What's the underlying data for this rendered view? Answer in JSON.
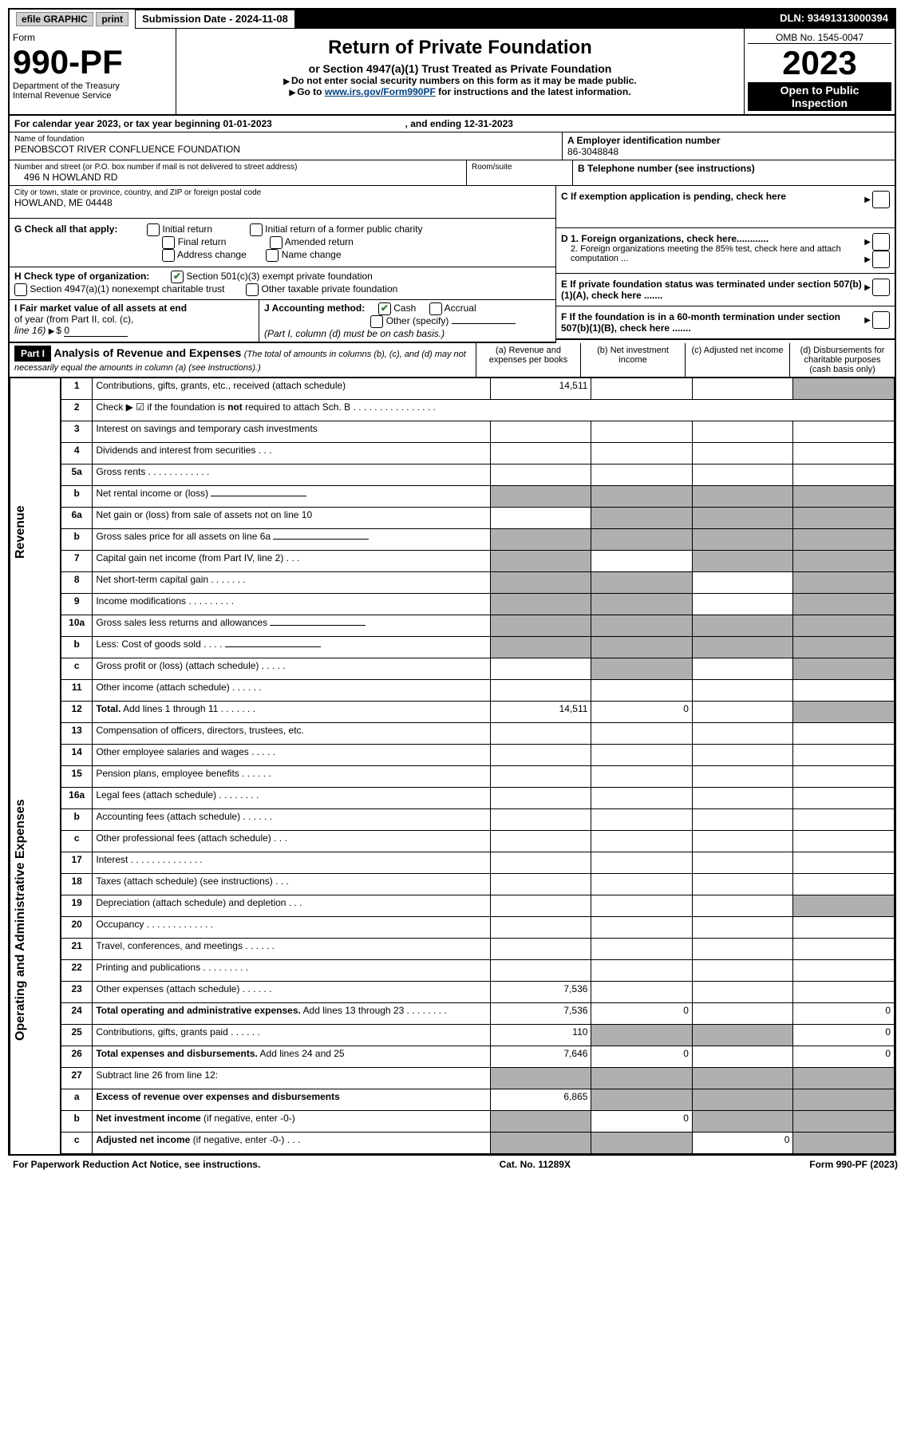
{
  "top_bar": {
    "efile": "efile GRAPHIC",
    "print": "print",
    "submission_label": "Submission Date - ",
    "submission_date": "2024-11-08",
    "dln_label": "DLN: ",
    "dln": "93491313000394"
  },
  "header": {
    "form_word": "Form",
    "form_number": "990-PF",
    "dept1": "Department of the Treasury",
    "dept2": "Internal Revenue Service",
    "title": "Return of Private Foundation",
    "subtitle": "or Section 4947(a)(1) Trust Treated as Private Foundation",
    "note1": "Do not enter social security numbers on this form as it may be made public.",
    "note2_pre": "Go to ",
    "note2_link": "www.irs.gov/Form990PF",
    "note2_post": " for instructions and the latest information.",
    "omb": "OMB No. 1545-0047",
    "year": "2023",
    "open_public1": "Open to Public",
    "open_public2": "Inspection"
  },
  "period": {
    "text": "For calendar year 2023, or tax year beginning ",
    "begin": "01-01-2023",
    "mid": " , and ending ",
    "end": "12-31-2023"
  },
  "identity": {
    "name_label": "Name of foundation",
    "name": "PENOBSCOT RIVER CONFLUENCE FOUNDATION",
    "addr_label": "Number and street (or P.O. box number if mail is not delivered to street address)",
    "addr": "496 N HOWLAND RD",
    "room_label": "Room/suite",
    "city_label": "City or town, state or province, country, and ZIP or foreign postal code",
    "city": "HOWLAND, ME  04448",
    "ein_label": "A Employer identification number",
    "ein": "86-3048848",
    "phone_label": "B Telephone number (see instructions)",
    "c_label": "C If exemption application is pending, check here",
    "d1": "D 1. Foreign organizations, check here............",
    "d2": "2. Foreign organizations meeting the 85% test, check here and attach computation ...",
    "e_label": "E  If private foundation status was terminated under section 507(b)(1)(A), check here .......",
    "f_label": "F  If the foundation is in a 60-month termination under section 507(b)(1)(B), check here .......",
    "g_label": "G Check all that apply:",
    "g_opts": [
      "Initial return",
      "Final return",
      "Address change",
      "Initial return of a former public charity",
      "Amended return",
      "Name change"
    ],
    "h_label": "H Check type of organization:",
    "h_501c3": "Section 501(c)(3) exempt private foundation",
    "h_4947": "Section 4947(a)(1) nonexempt charitable trust",
    "h_other": "Other taxable private foundation",
    "i_label1": "I Fair market value of all assets at end",
    "i_label2": "of year (from Part II, col. (c),",
    "i_label3": "line 16)",
    "i_val": "0",
    "j_label": "J Accounting method:",
    "j_cash": "Cash",
    "j_accrual": "Accrual",
    "j_other": "Other (specify)",
    "j_note": "(Part I, column (d) must be on cash basis.)"
  },
  "part1": {
    "label": "Part I",
    "title": "Analysis of Revenue and Expenses",
    "title_note": "(The total of amounts in columns (b), (c), and (d) may not necessarily equal the amounts in column (a) (see instructions).)",
    "cols": {
      "a": "(a)   Revenue and expenses per books",
      "b": "(b)   Net investment income",
      "c": "(c)   Adjusted net income",
      "d": "(d)   Disbursements for charitable purposes (cash basis only)"
    },
    "revenue_label": "Revenue",
    "expenses_label": "Operating and Administrative Expenses",
    "rows": [
      {
        "n": "1",
        "d": "Contributions, gifts, grants, etc., received (attach schedule)",
        "a": "14,511",
        "shade_d": true
      },
      {
        "n": "2",
        "d": "Check ▶ ☑ if the foundation is <b>not</b> required to attach Sch. B   .  .  .  .  .  .  .  .  .  .  .  .  .  .  .  .",
        "blank": true
      },
      {
        "n": "3",
        "d": "Interest on savings and temporary cash investments"
      },
      {
        "n": "4",
        "d": "Dividends and interest from securities   .   .   ."
      },
      {
        "n": "5a",
        "d": "Gross rents   .   .   .   .   .   .   .   .   .   .   .   ."
      },
      {
        "n": "b",
        "d": "Net rental income or (loss)",
        "inline": true,
        "shade_all": true
      },
      {
        "n": "6a",
        "d": "Net gain or (loss) from sale of assets not on line 10",
        "shade_bcd": true
      },
      {
        "n": "b",
        "d": "Gross sales price for all assets on line 6a",
        "inline": true,
        "shade_all": true
      },
      {
        "n": "7",
        "d": "Capital gain net income (from Part IV, line 2)   .   .   .",
        "shade_a": true,
        "shade_cd": true
      },
      {
        "n": "8",
        "d": "Net short-term capital gain   .   .   .   .   .   .   .",
        "shade_ab": true,
        "shade_d": true
      },
      {
        "n": "9",
        "d": "Income modifications   .   .   .   .   .   .   .   .   .",
        "shade_ab": true,
        "shade_d": true
      },
      {
        "n": "10a",
        "d": "Gross sales less returns and allowances",
        "inline": true,
        "shade_all": true
      },
      {
        "n": "b",
        "d": "Less: Cost of goods sold   .   .   .   .",
        "inline": true,
        "shade_all": true
      },
      {
        "n": "c",
        "d": "Gross profit or (loss) (attach schedule)   .   .   .   .   .",
        "shade_b": true,
        "shade_d": true
      },
      {
        "n": "11",
        "d": "Other income (attach schedule)   .   .   .   .   .   ."
      },
      {
        "n": "12",
        "d": "<b>Total.</b> Add lines 1 through 11   .   .   .   .   .   .   .",
        "a": "14,511",
        "b": "0",
        "shade_d": true
      },
      {
        "n": "13",
        "d": "Compensation of officers, directors, trustees, etc."
      },
      {
        "n": "14",
        "d": "Other employee salaries and wages   .   .   .   .   ."
      },
      {
        "n": "15",
        "d": "Pension plans, employee benefits   .   .   .   .   .   ."
      },
      {
        "n": "16a",
        "d": "Legal fees (attach schedule)   .   .   .   .   .   .   .   ."
      },
      {
        "n": "b",
        "d": "Accounting fees (attach schedule)   .   .   .   .   .   ."
      },
      {
        "n": "c",
        "d": "Other professional fees (attach schedule)   .   .   ."
      },
      {
        "n": "17",
        "d": "Interest   .   .   .   .   .   .   .   .   .   .   .   .   .   ."
      },
      {
        "n": "18",
        "d": "Taxes (attach schedule) (see instructions)   .   .   ."
      },
      {
        "n": "19",
        "d": "Depreciation (attach schedule) and depletion   .   .   .",
        "shade_d": true
      },
      {
        "n": "20",
        "d": "Occupancy   .   .   .   .   .   .   .   .   .   .   .   .   ."
      },
      {
        "n": "21",
        "d": "Travel, conferences, and meetings   .   .   .   .   .   ."
      },
      {
        "n": "22",
        "d": "Printing and publications   .   .   .   .   .   .   .   .   ."
      },
      {
        "n": "23",
        "d": "Other expenses (attach schedule)   .   .   .   .   .   .",
        "a": "7,536"
      },
      {
        "n": "24",
        "d": "<b>Total operating and administrative expenses.</b> Add lines 13 through 23   .   .   .   .   .   .   .   .",
        "a": "7,536",
        "b": "0",
        "dd": "0"
      },
      {
        "n": "25",
        "d": "Contributions, gifts, grants paid   .   .   .   .   .   .",
        "a": "110",
        "shade_bc": true,
        "dd": "0"
      },
      {
        "n": "26",
        "d": "<b>Total expenses and disbursements.</b> Add lines 24 and 25",
        "a": "7,646",
        "b": "0",
        "dd": "0"
      },
      {
        "n": "27",
        "d": "Subtract line 26 from line 12:",
        "shade_all": true
      },
      {
        "n": "a",
        "d": "<b>Excess of revenue over expenses and disbursements</b>",
        "a": "6,865",
        "shade_bcd": true
      },
      {
        "n": "b",
        "d": "<b>Net investment income</b> (if negative, enter -0-)",
        "shade_a": true,
        "b": "0",
        "shade_cd": true
      },
      {
        "n": "c",
        "d": "<b>Adjusted net income</b> (if negative, enter -0-)   .   .   .",
        "shade_ab": true,
        "c": "0",
        "shade_d": true
      }
    ]
  },
  "footer": {
    "left": "For Paperwork Reduction Act Notice, see instructions.",
    "center": "Cat. No. 11289X",
    "right": "Form 990-PF (2023)"
  }
}
